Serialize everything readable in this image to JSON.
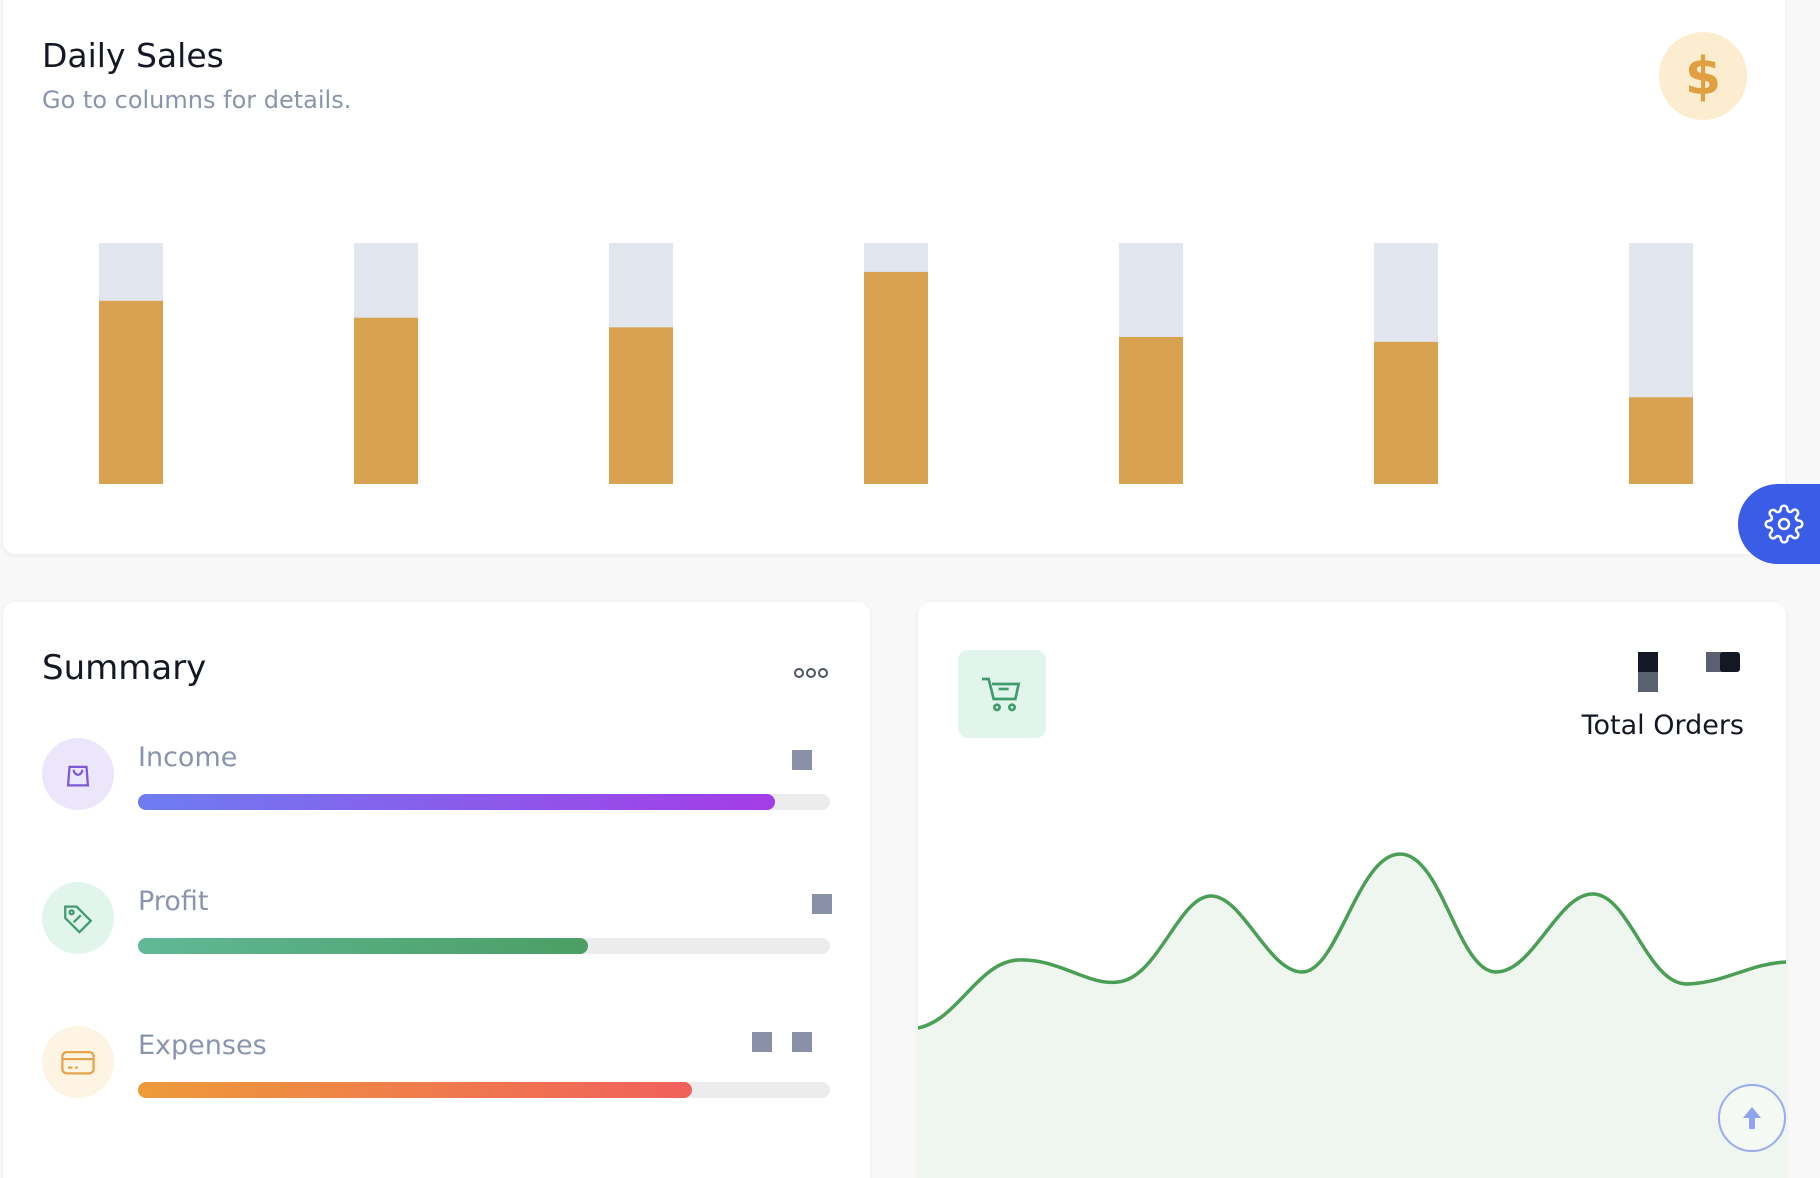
{
  "daily_sales": {
    "title": "Daily Sales",
    "subtitle": "Go to columns for details.",
    "badge_icon": "dollar-icon",
    "accent_color": "#d9a250",
    "track_color": "#e2e6ee"
  },
  "chart_data": {
    "type": "bar",
    "categories": [
      "",
      "",
      "",
      "",
      "",
      "",
      ""
    ],
    "values": [
      76,
      69,
      65,
      88,
      61,
      59,
      36
    ],
    "ylim": [
      0,
      100
    ],
    "grid": false
  },
  "settings": {
    "icon": "gear-icon"
  },
  "summary": {
    "title": "Summary",
    "menu_icon": "ellipsis-icon",
    "items": [
      {
        "label": "Income",
        "icon": "shopping-bag-icon",
        "progress": 0.92,
        "color_from": "#6e7cf0",
        "color_to": "#a43ce6",
        "icon_bg": "#ece6fb",
        "icon_color": "#7d5ad3"
      },
      {
        "label": "Profit",
        "icon": "tag-icon",
        "progress": 0.65,
        "color_from": "#60b896",
        "color_to": "#4b9e64",
        "icon_bg": "#e2f5ec",
        "icon_color": "#3f9c6e"
      },
      {
        "label": "Expenses",
        "icon": "credit-card-icon",
        "progress": 0.8,
        "color_from": "#ee9a3a",
        "color_to": "#f0605c",
        "icon_bg": "#fdf4e4",
        "icon_color": "#e6a44c"
      }
    ]
  },
  "total_orders": {
    "label": "Total Orders",
    "icon": "shopping-cart-icon",
    "line_color": "#4a9e55",
    "area_color": "#eef6ef"
  },
  "scroll_top": {
    "icon": "arrow-up-icon"
  }
}
